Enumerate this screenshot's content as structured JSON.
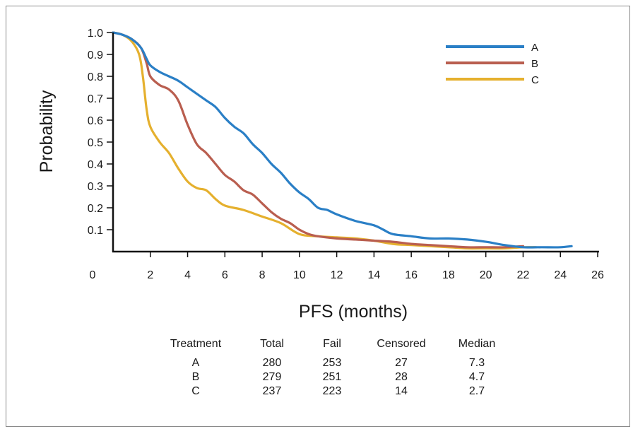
{
  "chart_data": {
    "type": "line",
    "xlabel": "PFS (months)",
    "ylabel": "Probability",
    "xlim": [
      0,
      26
    ],
    "ylim": [
      0,
      1.0
    ],
    "x_ticks": [
      "0",
      "2",
      "4",
      "6",
      "8",
      "10",
      "12",
      "14",
      "16",
      "18",
      "20",
      "22",
      "24",
      "26"
    ],
    "y_ticks": [
      "0.1",
      "0.2",
      "0.3",
      "0.4",
      "0.5",
      "0.6",
      "0.7",
      "0.8",
      "0.9",
      "1.0"
    ],
    "legend_position": "top-right",
    "series": [
      {
        "name": "A",
        "color": "#2a7fc6",
        "points": [
          [
            0,
            1.0
          ],
          [
            0.5,
            0.99
          ],
          [
            1.0,
            0.97
          ],
          [
            1.5,
            0.93
          ],
          [
            1.8,
            0.88
          ],
          [
            2.0,
            0.85
          ],
          [
            2.5,
            0.82
          ],
          [
            3.0,
            0.8
          ],
          [
            3.5,
            0.78
          ],
          [
            4.0,
            0.75
          ],
          [
            4.5,
            0.72
          ],
          [
            5.0,
            0.69
          ],
          [
            5.5,
            0.66
          ],
          [
            6.0,
            0.61
          ],
          [
            6.5,
            0.57
          ],
          [
            7.0,
            0.54
          ],
          [
            7.5,
            0.49
          ],
          [
            8.0,
            0.45
          ],
          [
            8.5,
            0.4
          ],
          [
            9.0,
            0.36
          ],
          [
            9.5,
            0.31
          ],
          [
            10.0,
            0.27
          ],
          [
            10.5,
            0.24
          ],
          [
            11.0,
            0.2
          ],
          [
            11.5,
            0.19
          ],
          [
            12.0,
            0.17
          ],
          [
            13.0,
            0.14
          ],
          [
            14.0,
            0.12
          ],
          [
            14.5,
            0.1
          ],
          [
            15.0,
            0.08
          ],
          [
            16.0,
            0.07
          ],
          [
            17.0,
            0.06
          ],
          [
            18.0,
            0.06
          ],
          [
            19.0,
            0.055
          ],
          [
            20.0,
            0.045
          ],
          [
            21.0,
            0.03
          ],
          [
            22.0,
            0.02
          ],
          [
            23.0,
            0.02
          ],
          [
            24.0,
            0.02
          ],
          [
            24.6,
            0.025
          ]
        ]
      },
      {
        "name": "B",
        "color": "#b95e4f",
        "points": [
          [
            0,
            1.0
          ],
          [
            0.5,
            0.99
          ],
          [
            1.0,
            0.97
          ],
          [
            1.5,
            0.93
          ],
          [
            1.8,
            0.86
          ],
          [
            2.0,
            0.8
          ],
          [
            2.5,
            0.76
          ],
          [
            3.0,
            0.74
          ],
          [
            3.5,
            0.69
          ],
          [
            4.0,
            0.58
          ],
          [
            4.5,
            0.49
          ],
          [
            5.0,
            0.45
          ],
          [
            5.5,
            0.4
          ],
          [
            6.0,
            0.35
          ],
          [
            6.5,
            0.32
          ],
          [
            7.0,
            0.28
          ],
          [
            7.5,
            0.26
          ],
          [
            8.0,
            0.22
          ],
          [
            8.5,
            0.18
          ],
          [
            9.0,
            0.15
          ],
          [
            9.5,
            0.13
          ],
          [
            10.0,
            0.1
          ],
          [
            10.5,
            0.08
          ],
          [
            11.0,
            0.07
          ],
          [
            12.0,
            0.06
          ],
          [
            13.0,
            0.055
          ],
          [
            14.0,
            0.05
          ],
          [
            15.0,
            0.045
          ],
          [
            16.0,
            0.035
          ],
          [
            17.0,
            0.03
          ],
          [
            18.0,
            0.025
          ],
          [
            19.0,
            0.02
          ],
          [
            20.0,
            0.02
          ],
          [
            21.0,
            0.02
          ],
          [
            22.0,
            0.025
          ]
        ]
      },
      {
        "name": "C",
        "color": "#e5b02e",
        "points": [
          [
            0,
            1.0
          ],
          [
            0.5,
            0.99
          ],
          [
            1.0,
            0.96
          ],
          [
            1.4,
            0.9
          ],
          [
            1.6,
            0.8
          ],
          [
            1.8,
            0.65
          ],
          [
            2.0,
            0.57
          ],
          [
            2.5,
            0.5
          ],
          [
            3.0,
            0.45
          ],
          [
            3.5,
            0.38
          ],
          [
            4.0,
            0.32
          ],
          [
            4.5,
            0.29
          ],
          [
            5.0,
            0.28
          ],
          [
            5.5,
            0.24
          ],
          [
            6.0,
            0.21
          ],
          [
            7.0,
            0.19
          ],
          [
            8.0,
            0.16
          ],
          [
            9.0,
            0.13
          ],
          [
            10.0,
            0.08
          ],
          [
            11.0,
            0.07
          ],
          [
            12.0,
            0.065
          ],
          [
            13.0,
            0.06
          ],
          [
            14.0,
            0.05
          ],
          [
            15.0,
            0.035
          ],
          [
            16.0,
            0.03
          ],
          [
            17.0,
            0.025
          ],
          [
            18.0,
            0.02
          ],
          [
            19.0,
            0.015
          ],
          [
            20.0,
            0.015
          ],
          [
            21.0,
            0.015
          ],
          [
            22.0,
            0.02
          ],
          [
            22.7,
            0.02
          ]
        ]
      }
    ],
    "table": {
      "columns": [
        "Treatment",
        "Total",
        "Fail",
        "Censored",
        "Median"
      ],
      "rows": [
        [
          "A",
          "280",
          "253",
          "27",
          "7.3"
        ],
        [
          "B",
          "279",
          "251",
          "28",
          "4.7"
        ],
        [
          "C",
          "237",
          "223",
          "14",
          "2.7"
        ]
      ]
    }
  }
}
